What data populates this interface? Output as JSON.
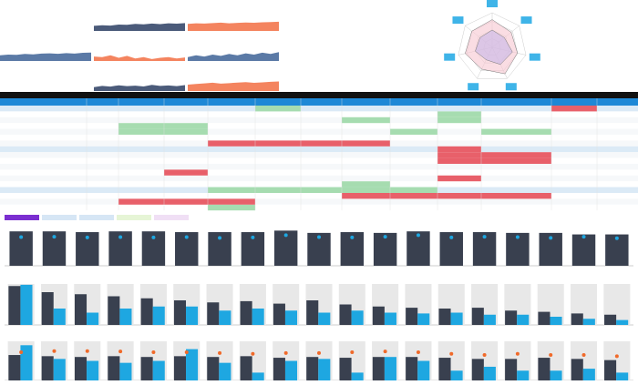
{
  "kpis": [
    {
      "color": "#4b5b7a",
      "values": [
        40,
        45,
        42,
        50,
        48,
        55,
        52,
        58,
        54,
        60,
        57,
        62
      ]
    },
    {
      "color": "#f4845f",
      "values": [
        55,
        60,
        58,
        62,
        65,
        60,
        63,
        66,
        64,
        68,
        70,
        72
      ]
    },
    {
      "color": "#5b7aa6",
      "values": [
        45,
        50,
        48,
        55,
        52,
        58,
        60,
        56,
        62,
        58,
        64,
        66
      ]
    },
    {
      "color": "#f4845f",
      "values": [
        35,
        30,
        45,
        25,
        40,
        20,
        30,
        15,
        25,
        30,
        20,
        28
      ]
    },
    {
      "color": "#5b7aa6",
      "values": [
        30,
        45,
        35,
        50,
        40,
        55,
        45,
        60,
        50,
        65,
        55,
        70
      ]
    },
    {
      "color": "#4b5b7a",
      "values": [
        30,
        40,
        35,
        45,
        38,
        42,
        36,
        48,
        40,
        44,
        38,
        46
      ]
    },
    {
      "color": "#f4845f",
      "values": [
        50,
        55,
        60,
        65,
        58,
        62,
        66,
        70,
        64,
        68,
        72,
        75
      ]
    }
  ],
  "radar": {
    "rlim": [
      0,
      100
    ],
    "series": [
      {
        "color": "#f7c6d0",
        "values": [
          80,
          70,
          75,
          85,
          70,
          80,
          75
        ]
      },
      {
        "color": "#c8b8e8",
        "values": [
          50,
          45,
          60,
          55,
          40,
          50,
          45
        ]
      }
    ]
  },
  "table": {
    "rows": 18,
    "columns": 13,
    "green": [
      [
        0,
        5
      ],
      [
        1,
        9
      ],
      [
        2,
        7
      ],
      [
        2,
        9
      ],
      [
        3,
        2
      ],
      [
        3,
        3
      ],
      [
        4,
        2
      ],
      [
        4,
        3
      ],
      [
        4,
        8
      ],
      [
        4,
        10
      ],
      [
        13,
        7
      ],
      [
        14,
        4
      ],
      [
        14,
        5
      ],
      [
        14,
        6
      ],
      [
        14,
        7
      ],
      [
        14,
        8
      ],
      [
        17,
        4
      ]
    ],
    "red": [
      [
        0,
        11
      ],
      [
        6,
        4
      ],
      [
        6,
        5
      ],
      [
        6,
        6
      ],
      [
        6,
        7
      ],
      [
        7,
        9
      ],
      [
        8,
        9
      ],
      [
        8,
        10
      ],
      [
        9,
        9
      ],
      [
        9,
        10
      ],
      [
        11,
        3
      ],
      [
        12,
        9
      ],
      [
        15,
        7
      ],
      [
        15,
        8
      ],
      [
        15,
        9
      ],
      [
        15,
        10
      ],
      [
        16,
        2
      ],
      [
        16,
        3
      ],
      [
        16,
        4
      ]
    ]
  },
  "buttons": [
    "#7b2fd0",
    "#d6e6f5",
    "#d6e6f5",
    "#e6f5d6",
    "#f0dff5"
  ],
  "chart_data": [
    {
      "type": "bar",
      "ylim": [
        0,
        100
      ],
      "series": [
        {
          "color": "#39404f",
          "values": [
            90,
            90,
            88,
            90,
            90,
            88,
            88,
            88,
            92,
            86,
            88,
            86,
            90,
            88,
            88,
            86,
            86,
            82,
            82
          ]
        }
      ],
      "dots": {
        "color": "#1ea7e1",
        "values": [
          75,
          76,
          74,
          75,
          74,
          75,
          73,
          74,
          80,
          75,
          74,
          76,
          80,
          74,
          76,
          75,
          73,
          76,
          72
        ]
      }
    },
    {
      "type": "bar",
      "ylim": [
        0,
        100
      ],
      "background": "#e8e8e8",
      "series": [
        {
          "color": "#39404f",
          "values": [
            95,
            80,
            75,
            70,
            65,
            60,
            55,
            58,
            52,
            60,
            50,
            45,
            42,
            40,
            42,
            35,
            32,
            28,
            25
          ]
        },
        {
          "color": "#1ea7e1",
          "values": [
            98,
            40,
            30,
            40,
            45,
            45,
            35,
            40,
            35,
            30,
            35,
            30,
            28,
            30,
            25,
            25,
            20,
            15,
            12
          ]
        }
      ]
    },
    {
      "type": "bar",
      "ylim": [
        0,
        100
      ],
      "background": "#e8e8e8",
      "series": [
        {
          "color": "#39404f",
          "values": [
            65,
            62,
            60,
            62,
            60,
            62,
            60,
            62,
            58,
            60,
            58,
            60,
            60,
            58,
            55,
            55,
            58,
            55,
            52
          ]
        },
        {
          "color": "#1ea7e1",
          "values": [
            90,
            55,
            50,
            45,
            50,
            80,
            45,
            20,
            50,
            55,
            20,
            60,
            50,
            25,
            35,
            25,
            25,
            30,
            20
          ]
        }
      ],
      "dots": {
        "color": "#f06a2a",
        "values": [
          72,
          75,
          75,
          74,
          72,
          72,
          70,
          68,
          70,
          70,
          72,
          74,
          72,
          68,
          65,
          68,
          65,
          65,
          62
        ]
      }
    }
  ]
}
